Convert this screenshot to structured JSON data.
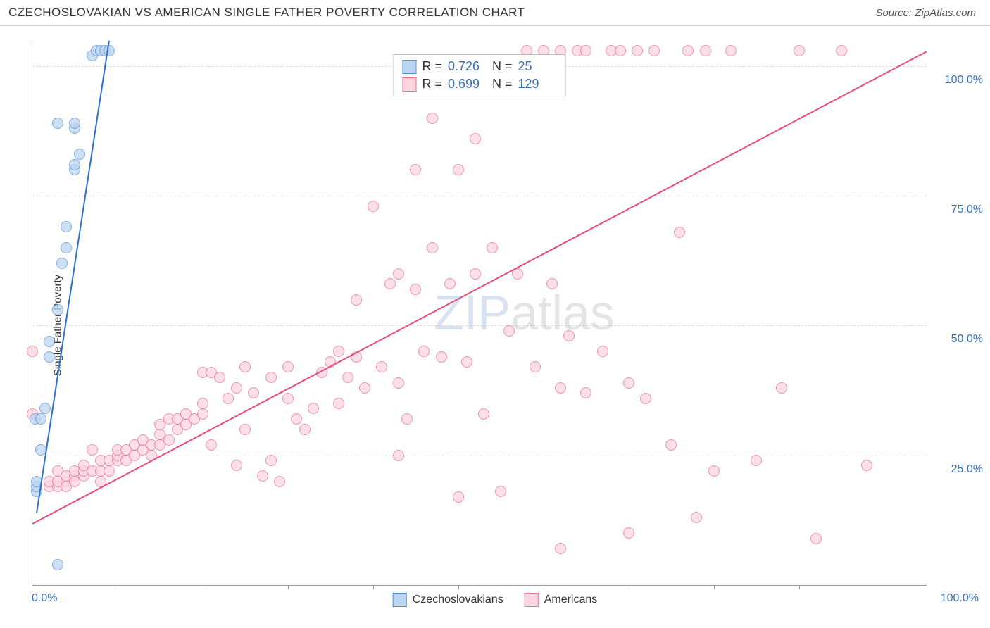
{
  "header": {
    "title": "CZECHOSLOVAKIAN VS AMERICAN SINGLE FATHER POVERTY CORRELATION CHART",
    "source_label": "Source: ZipAtlas.com"
  },
  "chart": {
    "type": "scatter",
    "y_axis_label": "Single Father Poverty",
    "xlim": [
      0,
      105
    ],
    "ylim": [
      0,
      105
    ],
    "y_ticks": [
      25,
      50,
      75,
      100
    ],
    "y_tick_labels": [
      "25.0%",
      "50.0%",
      "75.0%",
      "100.0%"
    ],
    "x_ticks": [
      0,
      100
    ],
    "x_tick_labels": [
      "0.0%",
      "100.0%"
    ],
    "x_minor_ticks": [
      10,
      20,
      30,
      40,
      50,
      60,
      70,
      80,
      90
    ],
    "grid_color": "#dddddd",
    "axis_color": "#999999",
    "background_color": "#ffffff",
    "tick_label_color": "#3b6fb5",
    "marker_radius": 8,
    "marker_stroke_width": 1.5,
    "trend_line_width": 2,
    "watermark": {
      "zip": "ZIP",
      "atlas": "atlas"
    },
    "series": [
      {
        "name": "Czechoslovakians",
        "fill_color": "#bcd5f0",
        "stroke_color": "#5b8fd4",
        "line_color": "#2f6fd0",
        "R": "0.726",
        "N": "25",
        "trend": {
          "x1": 0.5,
          "y1": 14,
          "x2": 9,
          "y2": 105
        },
        "points": [
          [
            0.5,
            18
          ],
          [
            0.5,
            19
          ],
          [
            0.5,
            20
          ],
          [
            0.3,
            32
          ],
          [
            1,
            26
          ],
          [
            1,
            32
          ],
          [
            1.5,
            34
          ],
          [
            2,
            44
          ],
          [
            2,
            47
          ],
          [
            3,
            53
          ],
          [
            3.5,
            62
          ],
          [
            4,
            65
          ],
          [
            4,
            69
          ],
          [
            5,
            80
          ],
          [
            5,
            81
          ],
          [
            5.5,
            83
          ],
          [
            5,
            88
          ],
          [
            5,
            89
          ],
          [
            3,
            89
          ],
          [
            7,
            102
          ],
          [
            7.5,
            103
          ],
          [
            8,
            103
          ],
          [
            8.5,
            103
          ],
          [
            9,
            103
          ],
          [
            3,
            4
          ]
        ]
      },
      {
        "name": "Americans",
        "fill_color": "#fbd5df",
        "stroke_color": "#e96f93",
        "line_color": "#e94b7a",
        "R": "0.699",
        "N": "129",
        "trend": {
          "x1": 0,
          "y1": 12,
          "x2": 105,
          "y2": 103
        },
        "points": [
          [
            0,
            33
          ],
          [
            0,
            45
          ],
          [
            2,
            19
          ],
          [
            2,
            20
          ],
          [
            3,
            19
          ],
          [
            3,
            20
          ],
          [
            3,
            22
          ],
          [
            4,
            20
          ],
          [
            4,
            21
          ],
          [
            4,
            19
          ],
          [
            5,
            21
          ],
          [
            5,
            22
          ],
          [
            5,
            20
          ],
          [
            6,
            21
          ],
          [
            6,
            22
          ],
          [
            6,
            23
          ],
          [
            7,
            22
          ],
          [
            7,
            26
          ],
          [
            8,
            22
          ],
          [
            8,
            24
          ],
          [
            8,
            20
          ],
          [
            9,
            22
          ],
          [
            9,
            24
          ],
          [
            10,
            24
          ],
          [
            10,
            25
          ],
          [
            10,
            26
          ],
          [
            11,
            24
          ],
          [
            11,
            26
          ],
          [
            12,
            25
          ],
          [
            12,
            27
          ],
          [
            13,
            26
          ],
          [
            13,
            28
          ],
          [
            14,
            25
          ],
          [
            14,
            27
          ],
          [
            15,
            27
          ],
          [
            15,
            29
          ],
          [
            15,
            31
          ],
          [
            16,
            28
          ],
          [
            16,
            32
          ],
          [
            17,
            30
          ],
          [
            17,
            32
          ],
          [
            18,
            31
          ],
          [
            18,
            33
          ],
          [
            19,
            32
          ],
          [
            20,
            33
          ],
          [
            20,
            41
          ],
          [
            20,
            35
          ],
          [
            21,
            41
          ],
          [
            21,
            27
          ],
          [
            22,
            40
          ],
          [
            23,
            36
          ],
          [
            24,
            38
          ],
          [
            24,
            23
          ],
          [
            25,
            42
          ],
          [
            25,
            30
          ],
          [
            26,
            37
          ],
          [
            27,
            21
          ],
          [
            28,
            24
          ],
          [
            28,
            40
          ],
          [
            29,
            20
          ],
          [
            30,
            36
          ],
          [
            30,
            42
          ],
          [
            31,
            32
          ],
          [
            32,
            30
          ],
          [
            33,
            34
          ],
          [
            34,
            41
          ],
          [
            35,
            43
          ],
          [
            36,
            35
          ],
          [
            36,
            45
          ],
          [
            37,
            40
          ],
          [
            38,
            44
          ],
          [
            38,
            55
          ],
          [
            39,
            38
          ],
          [
            40,
            73
          ],
          [
            41,
            42
          ],
          [
            42,
            58
          ],
          [
            43,
            39
          ],
          [
            43,
            60
          ],
          [
            44,
            32
          ],
          [
            45,
            57
          ],
          [
            45,
            80
          ],
          [
            46,
            45
          ],
          [
            47,
            65
          ],
          [
            47,
            90
          ],
          [
            48,
            44
          ],
          [
            49,
            58
          ],
          [
            50,
            17
          ],
          [
            50,
            80
          ],
          [
            51,
            43
          ],
          [
            52,
            60
          ],
          [
            52,
            86
          ],
          [
            53,
            33
          ],
          [
            54,
            65
          ],
          [
            55,
            18
          ],
          [
            56,
            49
          ],
          [
            57,
            60
          ],
          [
            58,
            103
          ],
          [
            59,
            42
          ],
          [
            60,
            103
          ],
          [
            61,
            58
          ],
          [
            62,
            38
          ],
          [
            62,
            103
          ],
          [
            63,
            48
          ],
          [
            64,
            103
          ],
          [
            65,
            37
          ],
          [
            65,
            103
          ],
          [
            67,
            45
          ],
          [
            68,
            103
          ],
          [
            69,
            103
          ],
          [
            70,
            39
          ],
          [
            71,
            103
          ],
          [
            72,
            36
          ],
          [
            73,
            103
          ],
          [
            75,
            27
          ],
          [
            76,
            68
          ],
          [
            77,
            103
          ],
          [
            79,
            103
          ],
          [
            80,
            22
          ],
          [
            82,
            103
          ],
          [
            85,
            24
          ],
          [
            88,
            38
          ],
          [
            90,
            103
          ],
          [
            92,
            9
          ],
          [
            95,
            103
          ],
          [
            62,
            7
          ],
          [
            70,
            10
          ],
          [
            78,
            13
          ],
          [
            98,
            23
          ],
          [
            43,
            25
          ]
        ]
      }
    ],
    "stats_box": {
      "R_label": "R =",
      "N_label": "N ="
    },
    "legend": {
      "items": [
        "Czechoslovakians",
        "Americans"
      ]
    }
  }
}
